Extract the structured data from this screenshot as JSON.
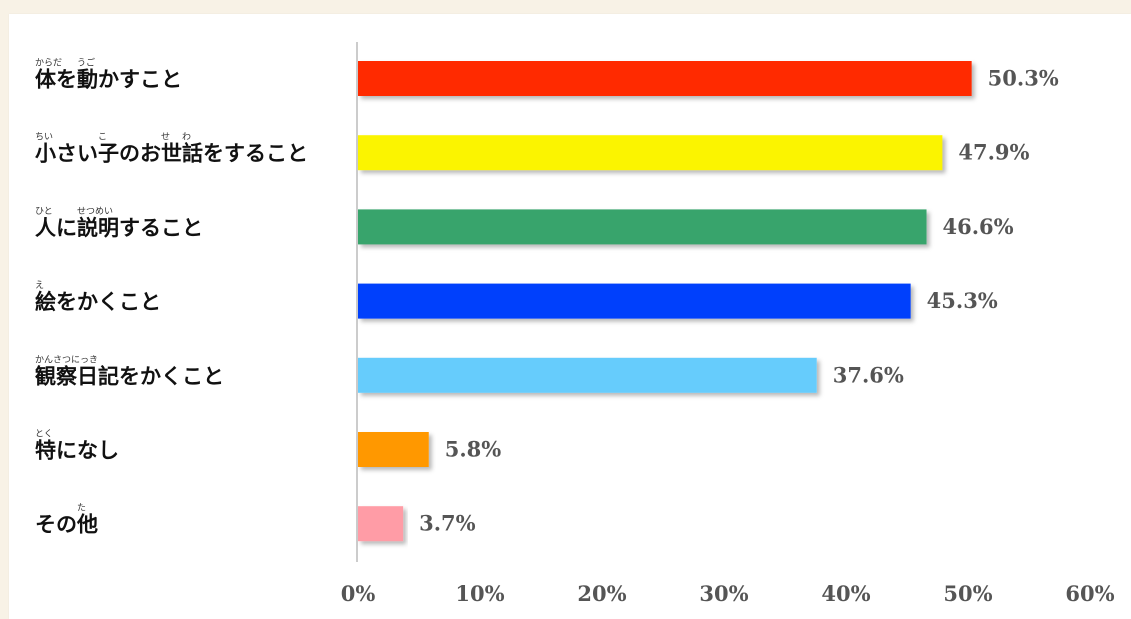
{
  "chart_data": {
    "type": "bar",
    "orientation": "horizontal",
    "categories": [
      {
        "label": "体を動かすこと",
        "ruby": [
          {
            "text": "からだ",
            "base_char": 0
          },
          {
            "text": "うご",
            "base_char": 2
          }
        ]
      },
      {
        "label": "小さい子のお世話をすること",
        "ruby": [
          {
            "text": "ちい",
            "base_char": 0
          },
          {
            "text": "こ",
            "base_char": 3
          },
          {
            "text": "せ",
            "base_char": 6
          },
          {
            "text": "わ",
            "base_char": 7
          }
        ]
      },
      {
        "label": "人に説明すること",
        "ruby": [
          {
            "text": "ひと",
            "base_char": 0
          },
          {
            "text": "せつめい",
            "base_char": 2
          }
        ]
      },
      {
        "label": "絵をかくこと",
        "ruby": [
          {
            "text": "え",
            "base_char": 0
          }
        ]
      },
      {
        "label": "観察日記をかくこと",
        "ruby": [
          {
            "text": "かんさつにっき",
            "base_char": 0
          }
        ]
      },
      {
        "label": "特になし",
        "ruby": [
          {
            "text": "とく",
            "base_char": 0
          }
        ]
      },
      {
        "label": "その他",
        "ruby": [
          {
            "text": "た",
            "base_char": 2
          }
        ]
      }
    ],
    "values": [
      50.3,
      47.9,
      46.6,
      45.3,
      37.6,
      5.8,
      3.7
    ],
    "value_labels": [
      "50.3%",
      "47.9%",
      "46.6%",
      "45.3%",
      "37.6%",
      "5.8%",
      "3.7%"
    ],
    "colors": [
      "#ff2a00",
      "#fbf404",
      "#38a46c",
      "#033ffc",
      "#66ccfc",
      "#ff9800",
      "#ff9ca6"
    ],
    "xlim": [
      0,
      60
    ],
    "xticks": [
      0,
      10,
      20,
      30,
      40,
      50,
      60
    ],
    "xtick_labels": [
      "0%",
      "10%",
      "20%",
      "30%",
      "40%",
      "50%",
      "60%"
    ],
    "grid": false,
    "legend": "none"
  }
}
